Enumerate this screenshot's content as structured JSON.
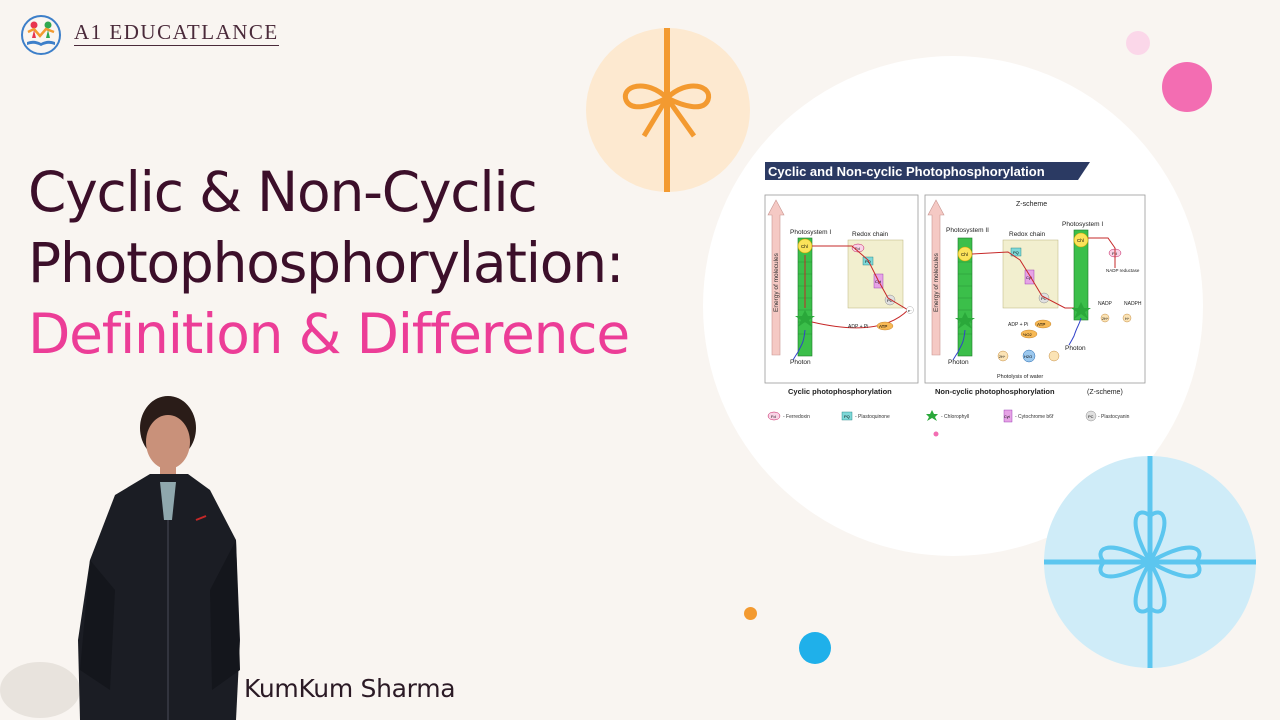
{
  "brand": {
    "name": "A1 EDUCATLANCE",
    "icon": "people-book-logo"
  },
  "title": {
    "line1": "Cyclic & Non-Cyclic",
    "line2": "Photophosphorylation:",
    "line3": "Definition & Difference",
    "accent_color": "#ec3d97",
    "main_color": "#3c0f2a"
  },
  "presenter": {
    "name": "KumKum Sharma"
  },
  "diagram": {
    "header": "Cyclic and Non-cyclic Photophosphorylation",
    "energy_label": "Energy of molecules",
    "cyclic": {
      "photosystem": "Photosystem I",
      "redox": "Redox chain",
      "adp": "ADP + Pi",
      "atp": "ATP",
      "photon": "Photon",
      "caption": "Cyclic photophosphorylation"
    },
    "noncyclic": {
      "zscheme": "Z-scheme",
      "ps2": "Photosystem II",
      "redox": "Redox chain",
      "ps1": "Photosystem I",
      "nadp": "NADP",
      "nadp_reductase": "NADP reductase",
      "nadph": "NADPH",
      "adp": "ADP + Pi",
      "atp": "ATP",
      "half_o2": "½O2",
      "h2o": "H2O",
      "photolysis": "Photolysis of water",
      "photon1": "Photon",
      "photon2": "Photon",
      "caption": "Non-cyclic photophosphorylation",
      "caption_suffix": "(Z-scheme)"
    },
    "tags": {
      "chl": "Chl",
      "fd": "Fd",
      "pq": "PQ",
      "cyt": "Cyt",
      "pc": "PC",
      "e": "e⁻",
      "h": "H⁺",
      "two_h": "2H⁺",
      "two_h_2": "2H⁺"
    },
    "legend": [
      {
        "tag": "Fd",
        "label": "- Ferredoxin"
      },
      {
        "tag": "PQ",
        "label": "- Plastoquinone"
      },
      {
        "tag": "",
        "label": "- Chlorophyll"
      },
      {
        "tag": "Cyt",
        "label": "- Cytochrome b6f"
      },
      {
        "tag": "PC",
        "label": "- Plastocyanin"
      }
    ]
  }
}
